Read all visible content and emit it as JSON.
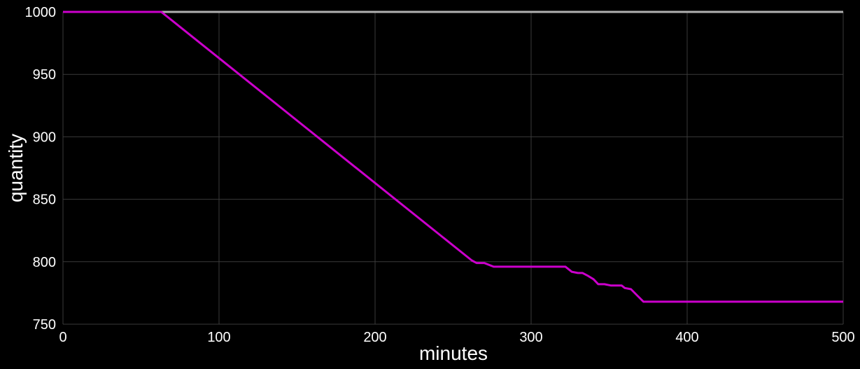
{
  "chart_data": {
    "type": "line",
    "title": "",
    "xlabel": "minutes",
    "ylabel": "quantity",
    "xlim": [
      0,
      500
    ],
    "ylim": [
      750,
      1000
    ],
    "xticks": [
      0,
      100,
      200,
      300,
      400,
      500
    ],
    "yticks": [
      750,
      800,
      850,
      900,
      950,
      1000
    ],
    "grid": true,
    "legend": "none",
    "colors": {
      "background": "#000000",
      "grid": "#3a3a3a",
      "text": "#ffffff"
    },
    "series": [
      {
        "color": "#b0b0b0",
        "x": [
          0,
          500
        ],
        "y": [
          1000,
          1000
        ]
      },
      {
        "color": "#cc00cc",
        "x": [
          0,
          63,
          262,
          265,
          270,
          276,
          300,
          322,
          326,
          330,
          333,
          336,
          340,
          343,
          347,
          351,
          355,
          358,
          360,
          364,
          368,
          372,
          400,
          450,
          500
        ],
        "y": [
          1000,
          1000,
          801,
          799,
          799,
          796,
          796,
          796,
          792,
          791,
          791,
          789,
          786,
          782,
          782,
          781,
          781,
          781,
          779,
          778,
          773,
          768,
          768,
          768,
          768
        ]
      }
    ]
  }
}
